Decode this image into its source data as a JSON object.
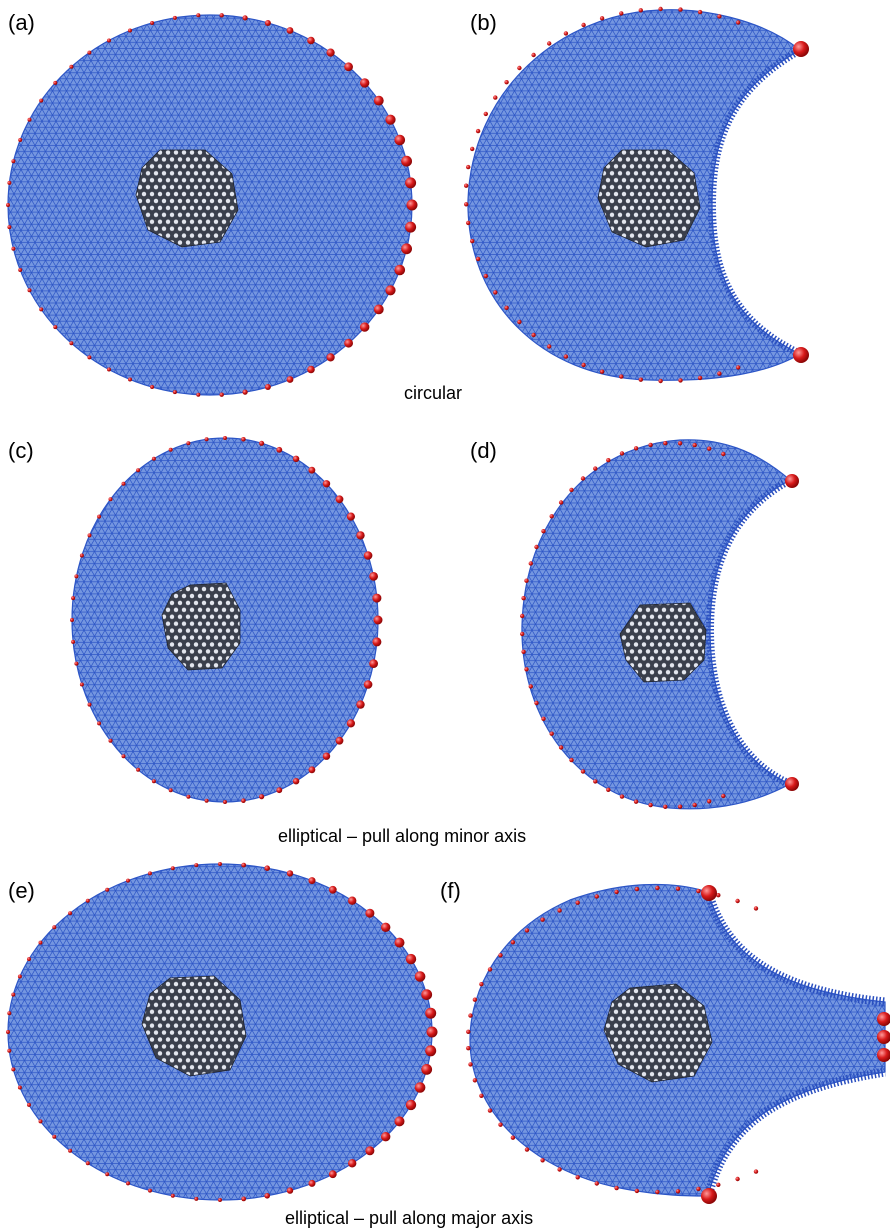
{
  "panels": [
    {
      "label": "(a)"
    },
    {
      "label": "(b)"
    },
    {
      "label": "(c)"
    },
    {
      "label": "(d)"
    },
    {
      "label": "(e)"
    },
    {
      "label": "(f)"
    }
  ],
  "captions": {
    "row1": "circular",
    "row2": "elliptical – pull along minor axis",
    "row3": "elliptical – pull along major axis"
  },
  "colors": {
    "mesh_fill": "#6f91de",
    "mesh_line": "#2f57c9",
    "inclusion_fill": "#3c4250",
    "inclusion_line": "#c9ced8",
    "bead": "#d41414",
    "bead_highlight": "#ff8a8a"
  }
}
